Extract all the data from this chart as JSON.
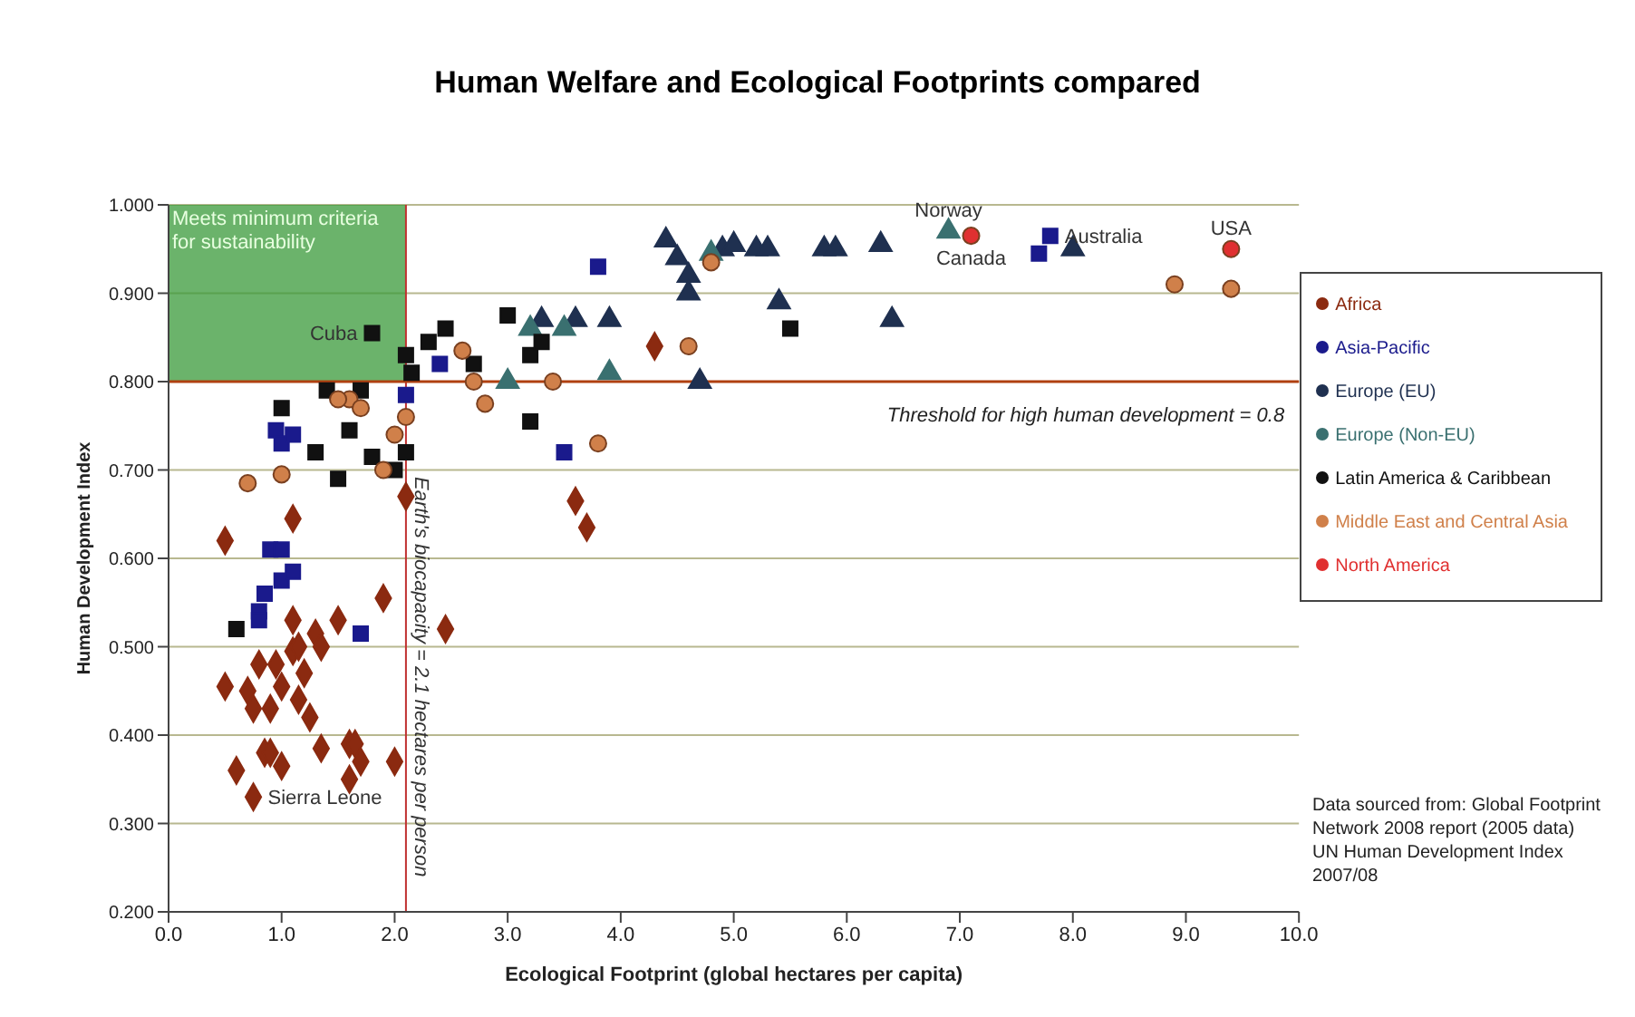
{
  "chart_data": {
    "type": "scatter",
    "title": "Human Welfare and Ecological Footprints compared",
    "xlabel": "Ecological Footprint (global hectares per capita)",
    "ylabel": "Human Development Index",
    "xlim": [
      0,
      10
    ],
    "ylim": [
      0.2,
      1.0
    ],
    "xticks": [
      {
        "value": 0,
        "label": "0.0"
      },
      {
        "value": 1,
        "label": "1.0"
      },
      {
        "value": 2,
        "label": "2.0"
      },
      {
        "value": 3,
        "label": "3.0"
      },
      {
        "value": 4,
        "label": "4.0"
      },
      {
        "value": 5,
        "label": "5.0"
      },
      {
        "value": 6,
        "label": "6.0"
      },
      {
        "value": 7,
        "label": "7.0"
      },
      {
        "value": 8,
        "label": "8.0"
      },
      {
        "value": 9,
        "label": "9.0"
      },
      {
        "value": 10,
        "label": "10.0"
      }
    ],
    "yticks": [
      {
        "value": 0.2,
        "label": "0.200"
      },
      {
        "value": 0.3,
        "label": "0.300"
      },
      {
        "value": 0.4,
        "label": "0.400"
      },
      {
        "value": 0.5,
        "label": "0.500"
      },
      {
        "value": 0.6,
        "label": "0.600"
      },
      {
        "value": 0.7,
        "label": "0.700"
      },
      {
        "value": 0.8,
        "label": "0.800"
      },
      {
        "value": 0.9,
        "label": "0.900"
      },
      {
        "value": 1.0,
        "label": "1.000"
      }
    ],
    "grid": "y",
    "legend": "right",
    "series": [
      {
        "name": "Africa",
        "color": "#8b2a10",
        "marker": "diamond",
        "x": [
          0.5,
          0.5,
          0.6,
          0.7,
          0.75,
          0.8,
          0.85,
          0.9,
          0.9,
          0.95,
          1.0,
          1.0,
          1.1,
          1.1,
          1.15,
          1.15,
          1.2,
          1.25,
          1.3,
          1.35,
          1.35,
          1.5,
          1.6,
          1.6,
          1.65,
          1.7,
          1.9,
          2.0,
          2.1,
          1.1,
          2.45,
          3.6,
          3.7,
          4.3,
          0.75
        ],
        "values": [
          0.62,
          0.455,
          0.36,
          0.45,
          0.43,
          0.48,
          0.38,
          0.38,
          0.43,
          0.48,
          0.365,
          0.455,
          0.53,
          0.495,
          0.5,
          0.44,
          0.47,
          0.42,
          0.515,
          0.5,
          0.385,
          0.53,
          0.35,
          0.39,
          0.39,
          0.37,
          0.555,
          0.37,
          0.67,
          0.645,
          0.52,
          0.665,
          0.635,
          0.84,
          0.33
        ]
      },
      {
        "name": "Asia-Pacific",
        "color": "#1a1a8c",
        "marker": "square",
        "x": [
          0.8,
          0.8,
          0.85,
          0.9,
          1.0,
          1.0,
          1.1,
          0.95,
          1.0,
          1.1,
          1.3,
          1.7,
          2.1,
          2.4,
          3.5,
          3.8,
          4.6,
          7.7,
          7.8
        ],
        "values": [
          0.54,
          0.53,
          0.56,
          0.61,
          0.61,
          0.575,
          0.585,
          0.745,
          0.73,
          0.74,
          null,
          0.515,
          0.785,
          0.82,
          0.72,
          0.93,
          null,
          0.945,
          0.965
        ]
      },
      {
        "name": "Europe (EU)",
        "color": "#1f3050",
        "marker": "triangle",
        "x": [
          4.4,
          4.5,
          4.6,
          4.6,
          4.9,
          5.0,
          5.2,
          5.3,
          5.4,
          5.8,
          5.9,
          6.3,
          6.4,
          8.0,
          3.3,
          3.5,
          3.6,
          3.9,
          4.7
        ],
        "values": [
          0.96,
          0.94,
          0.92,
          0.9,
          0.95,
          0.955,
          0.95,
          0.95,
          0.89,
          0.95,
          0.95,
          0.955,
          0.87,
          0.95,
          0.87,
          null,
          0.87,
          0.87,
          0.8
        ]
      },
      {
        "name": "Europe (Non-EU)",
        "color": "#3a7070",
        "marker": "triangle",
        "x": [
          3.2,
          3.5,
          3.9,
          3.0,
          6.9,
          4.8
        ],
        "values": [
          0.86,
          0.86,
          0.81,
          0.8,
          0.97,
          0.945
        ]
      },
      {
        "name": "Latin America & Caribbean",
        "color": "#111111",
        "marker": "square",
        "x": [
          0.6,
          1.0,
          1.4,
          1.5,
          1.6,
          1.7,
          1.8,
          2.0,
          2.1,
          2.1,
          2.15,
          2.3,
          2.45,
          2.7,
          3.0,
          3.2,
          3.3,
          3.2,
          1.8,
          5.5,
          1.3
        ],
        "values": [
          0.52,
          0.77,
          0.79,
          0.69,
          0.745,
          0.79,
          0.715,
          0.7,
          0.72,
          0.83,
          0.81,
          0.845,
          0.86,
          0.82,
          0.875,
          0.83,
          0.845,
          0.755,
          0.855,
          0.86,
          0.72
        ]
      },
      {
        "name": "Middle East and Central Asia",
        "color": "#d0804a",
        "marker": "circle",
        "x": [
          0.7,
          1.0,
          1.6,
          1.7,
          1.9,
          2.0,
          2.1,
          2.6,
          2.7,
          2.8,
          3.4,
          3.8,
          4.6,
          4.8,
          8.9,
          9.4,
          1.5
        ],
        "values": [
          0.685,
          0.695,
          0.78,
          0.77,
          0.7,
          0.74,
          0.76,
          0.835,
          0.8,
          0.775,
          0.8,
          0.73,
          0.84,
          0.935,
          0.91,
          0.905,
          0.78
        ]
      },
      {
        "name": "North America",
        "color": "#e03030",
        "marker": "circle",
        "x": [
          7.1,
          9.4
        ],
        "values": [
          0.965,
          0.95
        ]
      }
    ],
    "ref_lines": [
      {
        "axis": "x",
        "value": 2.1,
        "label": "Earth's biocapacity = 2.1 hectares per person",
        "color": "#c03030"
      },
      {
        "axis": "y",
        "value": 0.8,
        "label": "Threshold for high human development = 0.8",
        "color": "#b04010"
      }
    ],
    "annotations": [
      "Meets minimum criteria for sustainability",
      "Data sourced from: Global Footprint Network 2008 report (2005 data) UN Human Development Index 2007/08",
      {
        "text": "Norway",
        "x": 6.9,
        "y": 0.97
      },
      {
        "text": "Canada",
        "x": 7.1,
        "y": 0.965
      },
      {
        "text": "Australia",
        "x": 7.8,
        "y": 0.965
      },
      {
        "text": "USA",
        "x": 9.4,
        "y": 0.95
      },
      {
        "text": "Cuba",
        "x": 1.8,
        "y": 0.855
      },
      {
        "text": "Sierra Leone",
        "x": 0.75,
        "y": 0.33
      }
    ]
  }
}
